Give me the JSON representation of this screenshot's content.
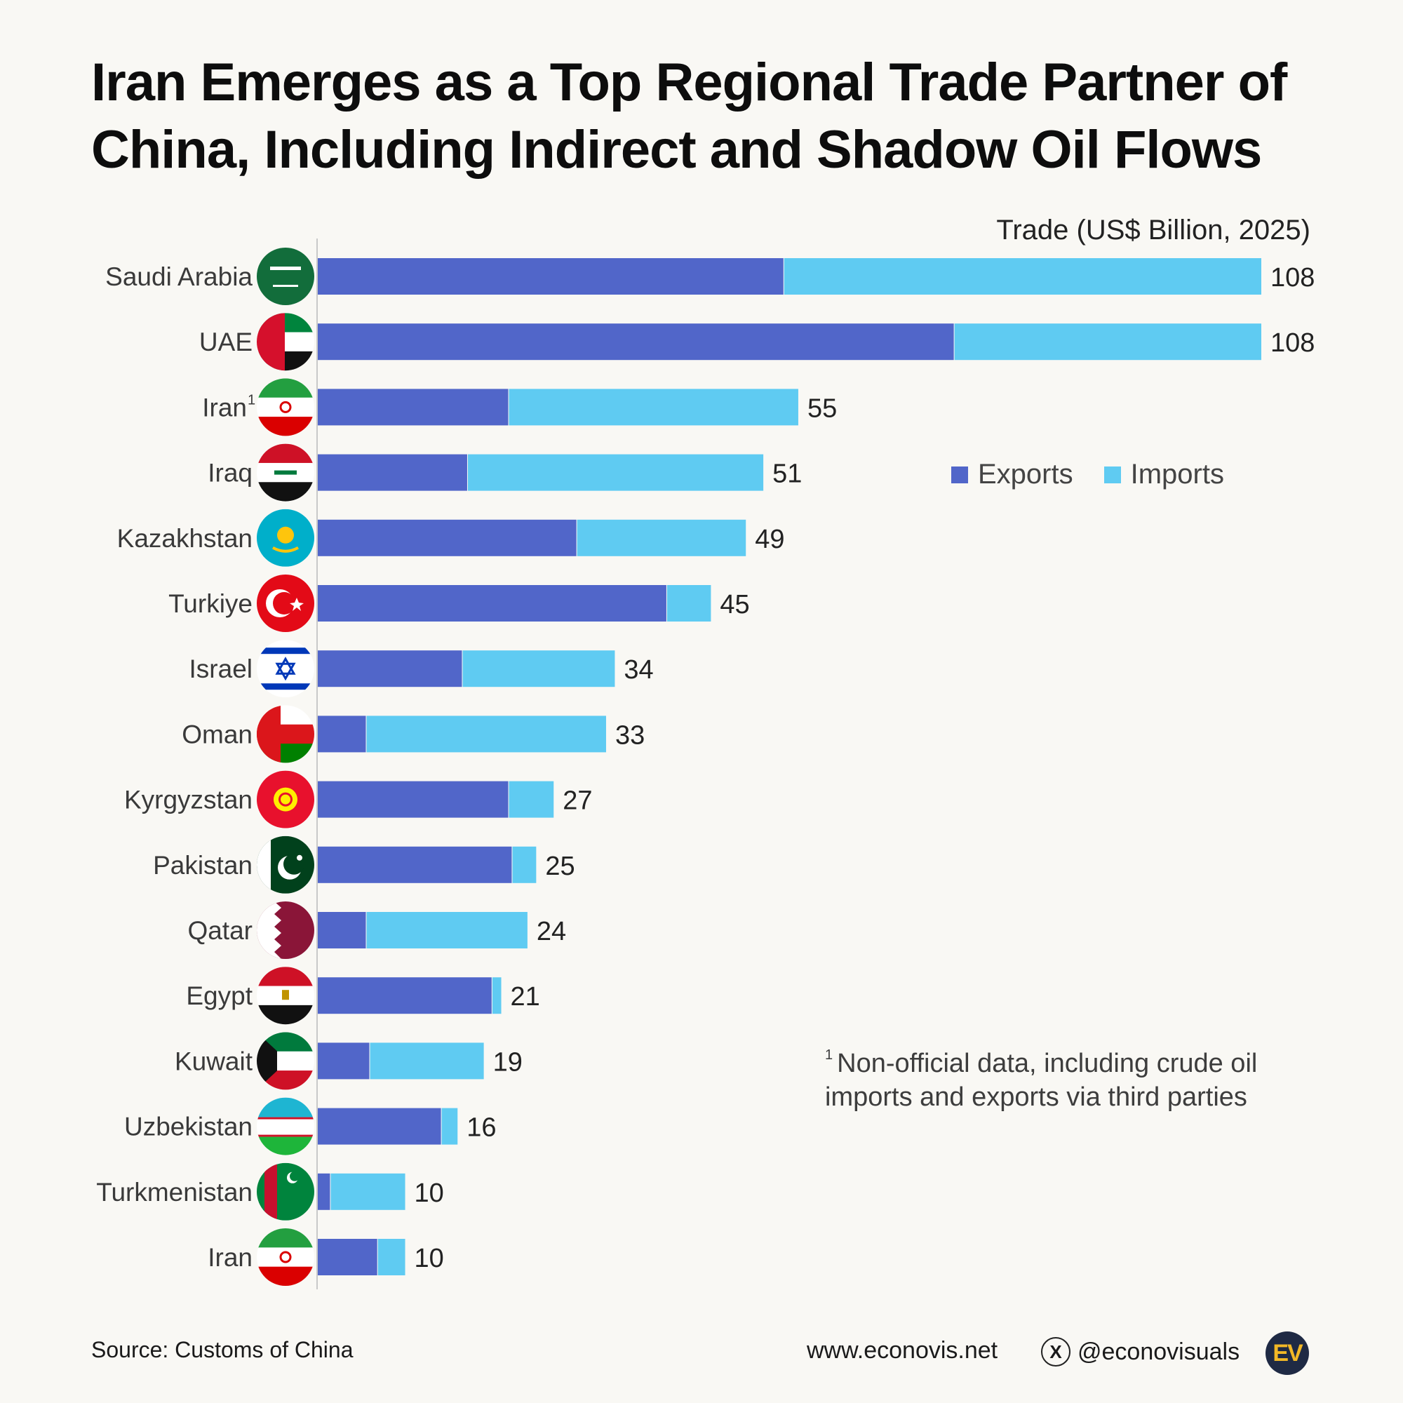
{
  "chart_data": {
    "type": "bar",
    "orientation": "horizontal",
    "stacked": true,
    "title_line1": "Iran Emerges as a Top Regional Trade Partner of",
    "title_line2": "China, Including Indirect and Shadow Oil Flows",
    "axis_title": "Trade (US$ Billion, 2025)",
    "categories": [
      "Saudi Arabia",
      "UAE",
      "Iran",
      "Iraq",
      "Kazakhstan",
      "Turkiye",
      "Israel",
      "Oman",
      "Kyrgyzstan",
      "Pakistan",
      "Qatar",
      "Egypt",
      "Kuwait",
      "Uzbekistan",
      "Turkmenistan",
      "Iran"
    ],
    "category_superscripts": [
      "",
      "",
      "1",
      "",
      "",
      "",
      "",
      "",
      "",
      "",
      "",
      "",
      "",
      "",
      "",
      ""
    ],
    "totals": [
      "108",
      "108",
      "55",
      "51",
      "49",
      "45",
      "34",
      "33",
      "27",
      "25",
      "24",
      "21",
      "19",
      "16",
      "10",
      "10"
    ],
    "series": [
      {
        "name": "Exports",
        "color": "#5166c9",
        "values": [
          53.3,
          72.8,
          21.8,
          17.1,
          29.6,
          39.9,
          16.5,
          5.5,
          21.8,
          22.2,
          5.5,
          19.9,
          5.9,
          14.1,
          1.4,
          6.8
        ]
      },
      {
        "name": "Imports",
        "color": "#5fcbf2",
        "values": [
          54.7,
          35.2,
          33.2,
          33.9,
          19.4,
          5.1,
          17.5,
          27.5,
          5.2,
          2.8,
          18.5,
          1.1,
          13.1,
          1.9,
          8.6,
          3.2
        ]
      }
    ],
    "xlim": [
      0,
      108
    ],
    "grid": false,
    "legend_position": "right"
  },
  "flags": [
    "saudi-arabia-flag-icon",
    "uae-flag-icon",
    "iran-flag-icon",
    "iraq-flag-icon",
    "kazakhstan-flag-icon",
    "turkiye-flag-icon",
    "israel-flag-icon",
    "oman-flag-icon",
    "kyrgyzstan-flag-icon",
    "pakistan-flag-icon",
    "qatar-flag-icon",
    "egypt-flag-icon",
    "kuwait-flag-icon",
    "uzbekistan-flag-icon",
    "turkmenistan-flag-icon",
    "iran-flag-icon"
  ],
  "legend": {
    "exports": "Exports",
    "imports": "Imports"
  },
  "footnote": {
    "marker": "1",
    "line1": "Non-official data, including crude oil",
    "line2": "imports and exports via third parties"
  },
  "footer": {
    "source": "Source: Customs of China",
    "website": "www.econovis.net",
    "social": "@econovisuals",
    "logo": "EV"
  }
}
